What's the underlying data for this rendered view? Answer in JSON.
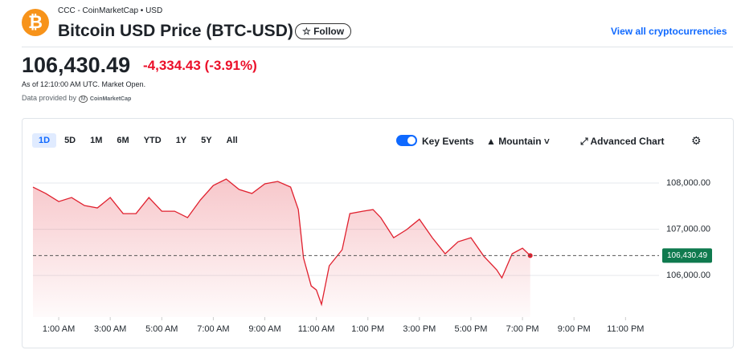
{
  "header": {
    "source": "CCC - CoinMarketCap • USD",
    "title": "Bitcoin USD Price (BTC-USD)",
    "follow": "Follow",
    "view_all": "View all cryptocurrencies",
    "change": "-4,334.43",
    "change_percent": "(-3.91%)",
    "as_of": "As of 12:10:00 AM UTC. Market Open.",
    "provided_by": "Data provided by",
    "provider": "CoinMarketCap"
  },
  "toolbar": {
    "ranges": [
      "1D",
      "5D",
      "1M",
      "6M",
      "YTD",
      "1Y",
      "5Y",
      "All"
    ],
    "key_events": "Key Events",
    "chart_style": "Mountain",
    "advanced": "Advanced Chart"
  },
  "chart_data": {
    "type": "area",
    "color": "#e0202e",
    "x": [
      0,
      0.5,
      1,
      1.5,
      2,
      2.5,
      3,
      3.5,
      4,
      4.5,
      5,
      5.5,
      6,
      6.5,
      7,
      7.5,
      8,
      8.5,
      9,
      9.5,
      10,
      10.3,
      10.5,
      10.8,
      11,
      11.2,
      11.5,
      12,
      12.3,
      12.8,
      13.2,
      13.5,
      14,
      14.5,
      15,
      15.5,
      16,
      16.5,
      17,
      17.5,
      18,
      18.2,
      18.6,
      19,
      19.3
    ],
    "values": [
      107913,
      107774,
      107600,
      107687,
      107513,
      107461,
      107687,
      107339,
      107339,
      107687,
      107391,
      107391,
      107252,
      107635,
      107948,
      108087,
      107861,
      107774,
      107983,
      108035,
      107913,
      107426,
      106383,
      105774,
      105687,
      105374,
      106209,
      106557,
      107339,
      107391,
      107426,
      107252,
      106817,
      106991,
      107217,
      106817,
      106470,
      106730,
      106817,
      106417,
      106122,
      105948,
      106470,
      106591,
      106430.49
    ],
    "current_price": {
      "value": 106430.49,
      "label": "106,430.49"
    },
    "xlim": [
      0,
      24.3
    ],
    "ylim": [
      105100,
      108400
    ],
    "xticks": [
      {
        "value": 1,
        "label": "1:00 AM"
      },
      {
        "value": 3,
        "label": "3:00 AM"
      },
      {
        "value": 5,
        "label": "5:00 AM"
      },
      {
        "value": 7,
        "label": "7:00 AM"
      },
      {
        "value": 9,
        "label": "9:00 AM"
      },
      {
        "value": 11,
        "label": "11:00 AM"
      },
      {
        "value": 13,
        "label": "1:00 PM"
      },
      {
        "value": 15,
        "label": "3:00 PM"
      },
      {
        "value": 17,
        "label": "5:00 PM"
      },
      {
        "value": 19,
        "label": "7:00 PM"
      },
      {
        "value": 21,
        "label": "9:00 PM"
      },
      {
        "value": 23,
        "label": "11:00 PM"
      }
    ],
    "yticks": [
      {
        "value": 106000,
        "label": "106,000.00"
      },
      {
        "value": 107000,
        "label": "107,000.00"
      },
      {
        "value": 108000,
        "label": "108,000.00"
      }
    ],
    "grid": true
  }
}
